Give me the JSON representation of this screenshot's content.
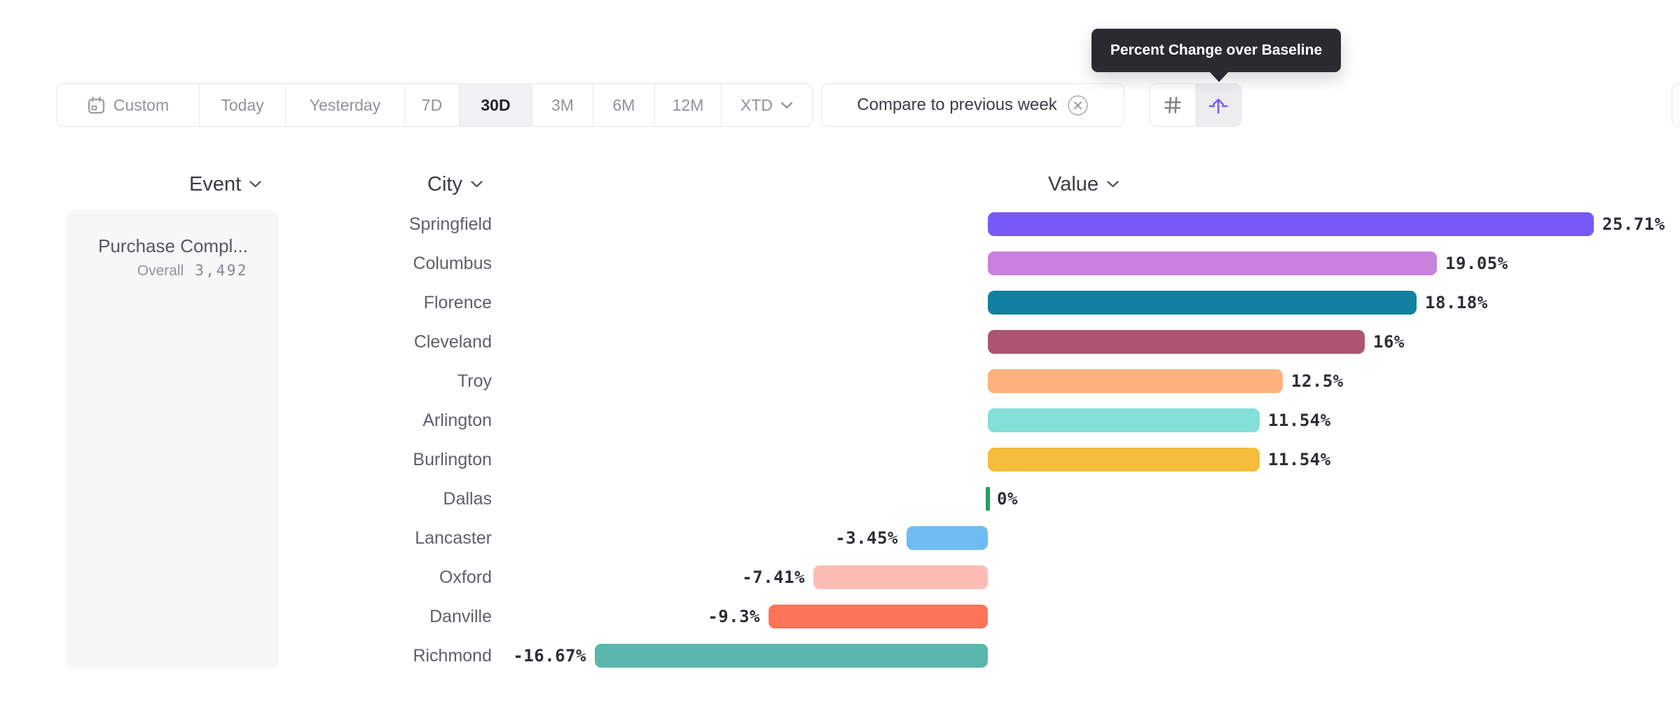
{
  "tooltip": {
    "text": "Percent Change over Baseline"
  },
  "toolbar": {
    "date_ranges": [
      {
        "label": "Custom",
        "selected": false
      },
      {
        "label": "Today",
        "selected": false
      },
      {
        "label": "Yesterday",
        "selected": false
      },
      {
        "label": "7D",
        "selected": false
      },
      {
        "label": "30D",
        "selected": true
      },
      {
        "label": "3M",
        "selected": false
      },
      {
        "label": "6M",
        "selected": false
      },
      {
        "label": "12M",
        "selected": false
      },
      {
        "label": "XTD",
        "selected": false
      }
    ],
    "compare_label": "Compare to previous week",
    "view_toggles": [
      {
        "icon": "hash-icon",
        "selected": false
      },
      {
        "icon": "percent-change-baseline-icon",
        "selected": true
      }
    ]
  },
  "columns": {
    "event": "Event",
    "city": "City",
    "value": "Value"
  },
  "event_panel": {
    "name": "Purchase Compl...",
    "overall_label": "Overall",
    "overall_value": "3,492"
  },
  "chart_data": {
    "type": "bar",
    "orientation": "horizontal",
    "title": "Percent Change over Baseline",
    "xlabel": "Value",
    "ylabel": "City",
    "categories": [
      "Springfield",
      "Columbus",
      "Florence",
      "Cleveland",
      "Troy",
      "Arlington",
      "Burlington",
      "Dallas",
      "Lancaster",
      "Oxford",
      "Danville",
      "Richmond"
    ],
    "values": [
      25.71,
      19.05,
      18.18,
      16,
      12.5,
      11.54,
      11.54,
      0,
      -3.45,
      -7.41,
      -9.3,
      -16.67
    ],
    "value_labels": [
      "25.71%",
      "19.05%",
      "18.18%",
      "16%",
      "12.5%",
      "11.54%",
      "11.54%",
      "0%",
      "-3.45%",
      "-7.41%",
      "-9.3%",
      "-16.67%"
    ],
    "colors": [
      "#7859f8",
      "#c981dd",
      "#12809f",
      "#ad5570",
      "#ffb27b",
      "#83dfd8",
      "#f5bd3b",
      "#21a05e",
      "#6fbcf4",
      "#fdbcb4",
      "#fd7457",
      "#5bb6ac"
    ],
    "unit": "%",
    "xlim": [
      -16.67,
      25.71
    ],
    "grid": false,
    "legend": false,
    "value_label_position": "outside-end",
    "zero_marker_color": "#21a05e"
  },
  "colors": {
    "accent": "#7a5af8",
    "tooltip_bg": "#2a2b31",
    "selected_bg": "#f2f2f4",
    "border": "#e6e6ea",
    "panel_bg": "#f7f7f8"
  }
}
